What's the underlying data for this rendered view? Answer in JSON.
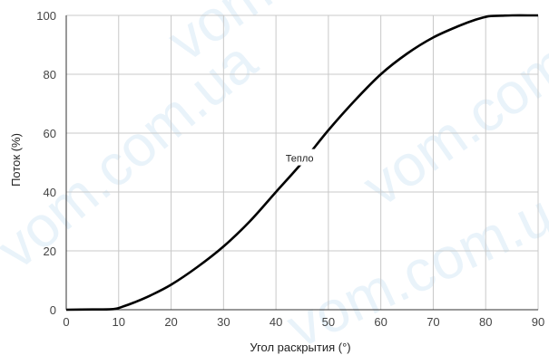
{
  "chart_data": {
    "type": "line",
    "xlabel": "Угол раскрытия (°)",
    "ylabel": "Поток (%)",
    "xlim": [
      0,
      90
    ],
    "ylim": [
      0,
      100
    ],
    "xticks": [
      0,
      10,
      20,
      30,
      40,
      50,
      60,
      70,
      80,
      90
    ],
    "yticks": [
      0,
      20,
      40,
      60,
      80,
      100
    ],
    "grid": true,
    "colors": {
      "line": "#000000",
      "grid": "#c8c8c8",
      "axis": "#333333"
    },
    "series": [
      {
        "name": "Тепло",
        "x": [
          0,
          5,
          9,
          11,
          13,
          16,
          20,
          25,
          30,
          35,
          40,
          45,
          50,
          55,
          60,
          65,
          70,
          75,
          78,
          80,
          81,
          83,
          85,
          88,
          90
        ],
        "y": [
          0,
          0.1,
          0.2,
          1.2,
          2.5,
          4.8,
          8.5,
          14.5,
          21.5,
          30,
          40,
          50,
          61,
          71,
          80,
          87,
          92.5,
          96.5,
          98.5,
          99.5,
          99.8,
          99.9,
          100,
          100,
          100
        ]
      }
    ],
    "annotations": [
      {
        "text": "Тепло",
        "x": 44.5,
        "y": 51.5
      }
    ]
  },
  "watermark": {
    "text": "vom.com.ua"
  }
}
